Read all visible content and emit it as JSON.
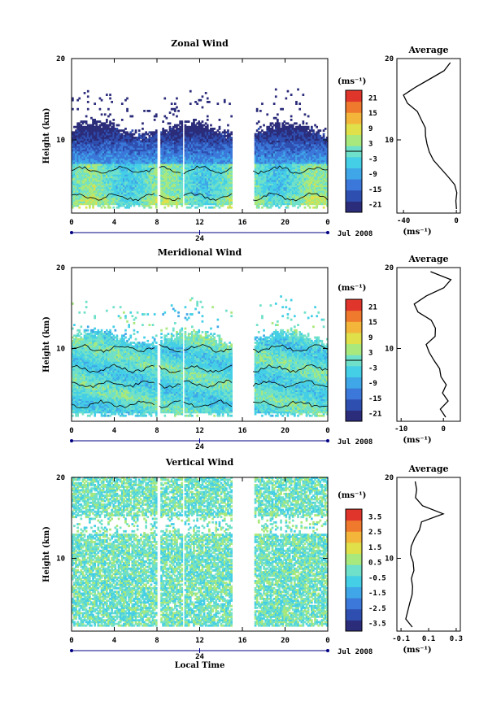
{
  "chart_data": [
    {
      "type": "heatmap",
      "title": "Zonal Wind",
      "ylabel": "Height (km)",
      "xlabel": "",
      "xticks": [
        "0",
        "4",
        "8",
        "12",
        "16",
        "20",
        "0"
      ],
      "yticks": [
        "10",
        "20"
      ],
      "date_tick": "24",
      "date_label": "Jul 2008",
      "xlim": [
        0,
        24
      ],
      "ylim": [
        1,
        20
      ],
      "cbar_unit": "(ms⁻¹)",
      "cbar_ticks": [
        "21",
        "15",
        "9",
        "3",
        "-3",
        "-9",
        "-15",
        "-21"
      ],
      "cbar_range": [
        -24,
        24
      ],
      "data_coverage": {
        "time_gaps_h": [
          [
            7.9,
            8.2
          ],
          [
            10.3,
            10.5
          ],
          [
            15.0,
            17.0
          ]
        ],
        "top_km_typical": 11.5
      },
      "profile": {
        "title": "Average",
        "xlabel": "(ms⁻¹)",
        "xticks": [
          "-40",
          "0"
        ],
        "yticks": [
          "10",
          "20"
        ],
        "xlim": [
          -45,
          3
        ],
        "height_km": [
          1.5,
          2.5,
          3.5,
          4.5,
          5.5,
          6.5,
          7.5,
          8.5,
          9.5,
          10.5,
          11.5,
          12.5,
          13.5,
          14.5,
          15.5,
          16.5,
          17.5,
          18.5,
          19.5
        ],
        "values": [
          0,
          -1,
          1,
          -2,
          -6,
          -12,
          -17,
          -20,
          -22,
          -23,
          -23,
          -26,
          -30,
          -37,
          -40,
          -30,
          -20,
          -10,
          -4
        ]
      }
    },
    {
      "type": "heatmap",
      "title": "Meridional Wind",
      "ylabel": "Height (km)",
      "xlabel": "",
      "xticks": [
        "0",
        "4",
        "8",
        "12",
        "16",
        "20",
        "0"
      ],
      "yticks": [
        "10",
        "20"
      ],
      "date_tick": "24",
      "date_label": "Jul 2008",
      "xlim": [
        0,
        24
      ],
      "ylim": [
        1,
        20
      ],
      "cbar_unit": "(ms⁻¹)",
      "cbar_ticks": [
        "21",
        "15",
        "9",
        "3",
        "-3",
        "-9",
        "-15",
        "-21"
      ],
      "cbar_range": [
        -24,
        24
      ],
      "data_coverage": {
        "time_gaps_h": [
          [
            7.9,
            8.2
          ],
          [
            10.3,
            10.5
          ],
          [
            15.0,
            17.0
          ]
        ],
        "top_km_typical": 11.5
      },
      "profile": {
        "title": "Average",
        "xlabel": "(ms⁻¹)",
        "xticks": [
          "-10",
          "0"
        ],
        "yticks": [
          "10",
          "20"
        ],
        "xlim": [
          -11,
          4
        ],
        "height_km": [
          1.5,
          2.5,
          3.5,
          4.5,
          5.5,
          6.5,
          7.5,
          8.5,
          9.5,
          10.5,
          11.5,
          12.5,
          13.5,
          14.5,
          15.5,
          16.5,
          17.5,
          18.5,
          19.5
        ],
        "values": [
          0.5,
          -0.5,
          1,
          0,
          0.5,
          -0.5,
          -1,
          -2,
          -3.5,
          -4,
          -2,
          -2,
          -3,
          -6,
          -7,
          -4,
          0,
          2,
          -3
        ]
      }
    },
    {
      "type": "heatmap",
      "title": "Vertical Wind",
      "ylabel": "Height (km)",
      "xlabel": "Local Time",
      "xticks": [
        "0",
        "4",
        "8",
        "12",
        "16",
        "20",
        "0"
      ],
      "yticks": [
        "10",
        "20"
      ],
      "date_tick": "24",
      "date_label": "Jul 2008",
      "xlim": [
        0,
        24
      ],
      "ylim": [
        1,
        20
      ],
      "cbar_unit": "(ms⁻¹)",
      "cbar_ticks": [
        "3.5",
        "2.5",
        "1.5",
        "0.5",
        "-0.5",
        "-1.5",
        "-2.5",
        "-3.5"
      ],
      "cbar_range": [
        -4,
        4
      ],
      "data_coverage": {
        "time_gaps_h": [
          [
            7.9,
            8.2
          ],
          [
            10.3,
            10.5
          ],
          [
            15.0,
            17.0
          ]
        ],
        "top_km_typical": 20
      },
      "profile": {
        "title": "Average",
        "xlabel": "(ms⁻¹)",
        "xticks": [
          "-0.1",
          "0.1",
          "0.3"
        ],
        "yticks": [
          "10",
          "20"
        ],
        "xlim": [
          -0.13,
          0.33
        ],
        "height_km": [
          1.5,
          2.5,
          3.5,
          4.5,
          5.5,
          6.5,
          7.5,
          8.5,
          9.5,
          10.5,
          11.5,
          12.5,
          13.5,
          14.5,
          15.5,
          16.5,
          17.5,
          18.5,
          19.5
        ],
        "values": [
          -0.02,
          -0.06,
          -0.05,
          -0.03,
          -0.02,
          -0.01,
          -0.02,
          0.0,
          -0.01,
          -0.03,
          -0.02,
          0.0,
          0.03,
          0.05,
          0.2,
          0.05,
          0.0,
          0.02,
          0.0
        ]
      }
    }
  ],
  "colors": {
    "scale": [
      "#2b2c7a",
      "#2f4fb0",
      "#3b78d9",
      "#3fa7e8",
      "#45cfe6",
      "#6fe0c9",
      "#a8e87c",
      "#dfe04a",
      "#f3b53a",
      "#ef7a2e",
      "#e0352a"
    ],
    "contour": "#000000",
    "axis": "#000080"
  }
}
